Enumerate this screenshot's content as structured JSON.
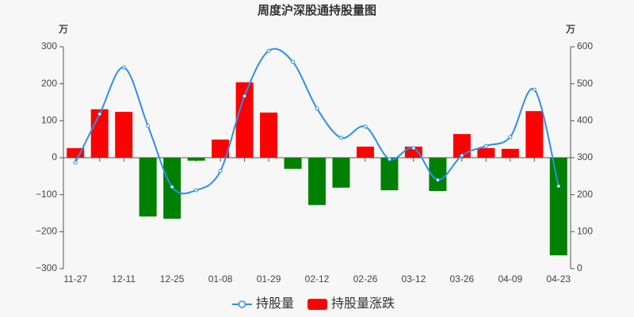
{
  "chart_data": {
    "type": "bar_line",
    "title": "周度沪深股通持股量图",
    "y_unit": "万",
    "y2_unit": "万",
    "categories": [
      "11-27",
      null,
      "12-11",
      null,
      "12-25",
      null,
      "01-08",
      null,
      "01-29",
      null,
      "02-12",
      null,
      "02-26",
      null,
      "03-12",
      null,
      "03-26",
      null,
      "04-09",
      null,
      "04-23"
    ],
    "series": [
      {
        "name": "持股量",
        "type": "line",
        "axis": "y2",
        "color": "#2f8fe8",
        "values": [
          287,
          418,
          544,
          386,
          221,
          212,
          264,
          467,
          589,
          559,
          433,
          354,
          384,
          296,
          326,
          240,
          306,
          332,
          356,
          484,
          223
        ]
      },
      {
        "name": "持股量涨跌",
        "type": "bar",
        "color": "#ff0000",
        "negative_color": "#008000",
        "values": [
          26,
          131,
          124,
          -159,
          -165,
          -8,
          49,
          204,
          122,
          -30,
          -128,
          -81,
          30,
          -88,
          30,
          -90,
          64,
          26,
          24,
          126,
          -264
        ]
      }
    ],
    "ylim": [
      -300,
      300
    ],
    "yticks": [
      {
        "value": -300,
        "label": "−300"
      },
      {
        "value": -200,
        "label": "−200"
      },
      {
        "value": -100,
        "label": "−100"
      },
      0,
      100,
      200,
      300
    ],
    "y2lim": [
      0,
      600
    ],
    "y2ticks": [
      0,
      100,
      200,
      300,
      400,
      500,
      600
    ],
    "legend": "bottom"
  }
}
